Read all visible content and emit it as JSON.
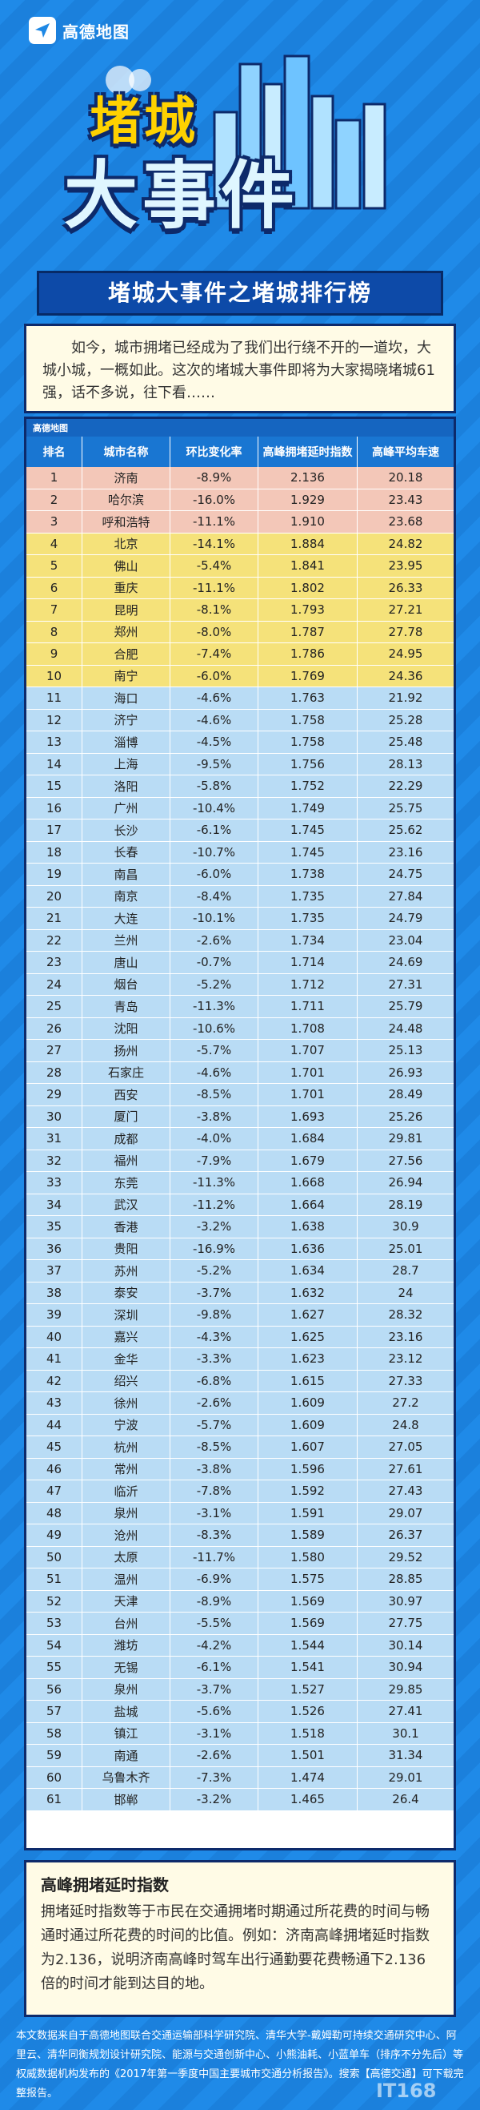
{
  "header": {
    "logo_text": "高德地图",
    "title_line1": "堵城",
    "title_line2": "大事件"
  },
  "banner": "堵城大事件之堵城排行榜",
  "intro": "如今，城市拥堵已经成为了我们出行绕不开的一道坎，大城小城，一概如此。这次的堵城大事件即将为大家揭晓堵城61强，话不多说，往下看……",
  "table": {
    "logo": "高德地图",
    "headers": [
      "排名",
      "城市名称",
      "环比变化率",
      "高峰拥堵延时指数",
      "高峰平均车速"
    ],
    "rows": [
      [
        "1",
        "济南",
        "-8.9%",
        "2.136",
        "20.18"
      ],
      [
        "2",
        "哈尔滨",
        "-16.0%",
        "1.929",
        "23.43"
      ],
      [
        "3",
        "呼和浩特",
        "-11.1%",
        "1.910",
        "23.68"
      ],
      [
        "4",
        "北京",
        "-14.1%",
        "1.884",
        "24.82"
      ],
      [
        "5",
        "佛山",
        "-5.4%",
        "1.841",
        "23.95"
      ],
      [
        "6",
        "重庆",
        "-11.1%",
        "1.802",
        "26.33"
      ],
      [
        "7",
        "昆明",
        "-8.1%",
        "1.793",
        "27.21"
      ],
      [
        "8",
        "郑州",
        "-8.0%",
        "1.787",
        "27.78"
      ],
      [
        "9",
        "合肥",
        "-7.4%",
        "1.786",
        "24.95"
      ],
      [
        "10",
        "南宁",
        "-6.0%",
        "1.769",
        "24.36"
      ],
      [
        "11",
        "海口",
        "-4.6%",
        "1.763",
        "21.92"
      ],
      [
        "12",
        "济宁",
        "-4.6%",
        "1.758",
        "25.28"
      ],
      [
        "13",
        "淄博",
        "-4.5%",
        "1.758",
        "25.48"
      ],
      [
        "14",
        "上海",
        "-9.5%",
        "1.756",
        "28.13"
      ],
      [
        "15",
        "洛阳",
        "-5.8%",
        "1.752",
        "22.29"
      ],
      [
        "16",
        "广州",
        "-10.4%",
        "1.749",
        "25.75"
      ],
      [
        "17",
        "长沙",
        "-6.1%",
        "1.745",
        "25.62"
      ],
      [
        "18",
        "长春",
        "-10.7%",
        "1.745",
        "23.16"
      ],
      [
        "19",
        "南昌",
        "-6.0%",
        "1.738",
        "24.75"
      ],
      [
        "20",
        "南京",
        "-8.4%",
        "1.735",
        "27.84"
      ],
      [
        "21",
        "大连",
        "-10.1%",
        "1.735",
        "24.79"
      ],
      [
        "22",
        "兰州",
        "-2.6%",
        "1.734",
        "23.04"
      ],
      [
        "23",
        "唐山",
        "-0.7%",
        "1.714",
        "24.69"
      ],
      [
        "24",
        "烟台",
        "-5.2%",
        "1.712",
        "27.31"
      ],
      [
        "25",
        "青岛",
        "-11.3%",
        "1.711",
        "25.79"
      ],
      [
        "26",
        "沈阳",
        "-10.6%",
        "1.708",
        "24.48"
      ],
      [
        "27",
        "扬州",
        "-5.7%",
        "1.707",
        "25.13"
      ],
      [
        "28",
        "石家庄",
        "-4.6%",
        "1.701",
        "26.93"
      ],
      [
        "29",
        "西安",
        "-8.5%",
        "1.701",
        "28.49"
      ],
      [
        "30",
        "厦门",
        "-3.8%",
        "1.693",
        "25.26"
      ],
      [
        "31",
        "成都",
        "-4.0%",
        "1.684",
        "29.81"
      ],
      [
        "32",
        "福州",
        "-7.9%",
        "1.679",
        "27.56"
      ],
      [
        "33",
        "东莞",
        "-11.3%",
        "1.668",
        "26.94"
      ],
      [
        "34",
        "武汉",
        "-11.2%",
        "1.664",
        "28.19"
      ],
      [
        "35",
        "香港",
        "-3.2%",
        "1.638",
        "30.9"
      ],
      [
        "36",
        "贵阳",
        "-16.9%",
        "1.636",
        "25.01"
      ],
      [
        "37",
        "苏州",
        "-5.2%",
        "1.634",
        "28.7"
      ],
      [
        "38",
        "泰安",
        "-3.7%",
        "1.632",
        "24"
      ],
      [
        "39",
        "深圳",
        "-9.8%",
        "1.627",
        "28.32"
      ],
      [
        "40",
        "嘉兴",
        "-4.3%",
        "1.625",
        "23.16"
      ],
      [
        "41",
        "金华",
        "-3.3%",
        "1.623",
        "23.12"
      ],
      [
        "42",
        "绍兴",
        "-6.8%",
        "1.615",
        "27.33"
      ],
      [
        "43",
        "徐州",
        "-2.6%",
        "1.609",
        "27.2"
      ],
      [
        "44",
        "宁波",
        "-5.7%",
        "1.609",
        "24.8"
      ],
      [
        "45",
        "杭州",
        "-8.5%",
        "1.607",
        "27.05"
      ],
      [
        "46",
        "常州",
        "-3.8%",
        "1.596",
        "27.61"
      ],
      [
        "47",
        "临沂",
        "-7.8%",
        "1.592",
        "27.43"
      ],
      [
        "48",
        "泉州",
        "-3.1%",
        "1.591",
        "29.07"
      ],
      [
        "49",
        "沧州",
        "-8.3%",
        "1.589",
        "26.37"
      ],
      [
        "50",
        "太原",
        "-11.7%",
        "1.580",
        "29.52"
      ],
      [
        "51",
        "温州",
        "-6.9%",
        "1.575",
        "28.85"
      ],
      [
        "52",
        "天津",
        "-8.9%",
        "1.569",
        "30.97"
      ],
      [
        "53",
        "台州",
        "-5.5%",
        "1.569",
        "27.75"
      ],
      [
        "54",
        "潍坊",
        "-4.2%",
        "1.544",
        "30.14"
      ],
      [
        "55",
        "无锡",
        "-6.1%",
        "1.541",
        "30.94"
      ],
      [
        "56",
        "泉州",
        "-3.7%",
        "1.527",
        "29.85"
      ],
      [
        "57",
        "盐城",
        "-5.6%",
        "1.526",
        "27.41"
      ],
      [
        "58",
        "镇江",
        "-3.1%",
        "1.518",
        "30.1"
      ],
      [
        "59",
        "南通",
        "-2.6%",
        "1.501",
        "31.34"
      ],
      [
        "60",
        "乌鲁木齐",
        "-7.3%",
        "1.474",
        "29.01"
      ],
      [
        "61",
        "邯郸",
        "-3.2%",
        "1.465",
        "26.4"
      ]
    ]
  },
  "definition": {
    "title": "高峰拥堵延时指数",
    "text": "拥堵延时指数等于市民在交通拥堵时期通过所花费的时间与畅通时通过所花费的时间的比值。例如：济南高峰拥堵延时指数为2.136，说明济南高峰时驾车出行通勤要花费畅通下2.136倍的时间才能到达目的地。"
  },
  "footer": "本文数据来自于高德地图联合交通运输部科学研究院、清华大学-戴姆勒可持续交通研究中心、阿里云、清华同衡规划设计研究院、能源与交通创新中心、小熊油耗、小蓝单车（排序不分先后）等权威数据机构发布的《2017年第一季度中国主要城市交通分析报告》。搜索【高德交通】可下载完整报告。",
  "watermark": "IT168",
  "colors": {
    "top3": "#f3c7b8",
    "top10": "#f5e27a",
    "rest": "#b9dcf5"
  }
}
